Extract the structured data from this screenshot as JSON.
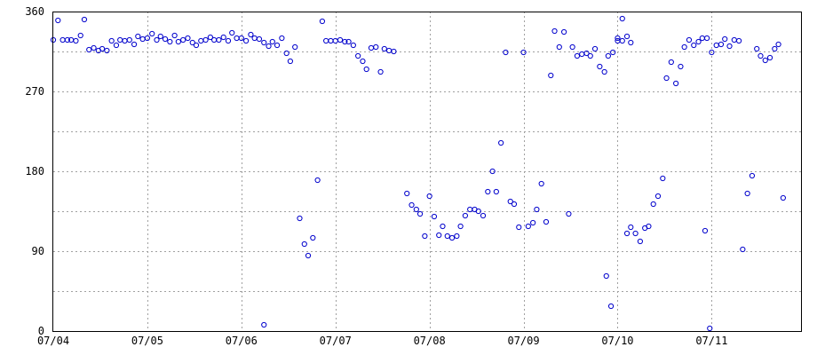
{
  "chart_data": {
    "type": "scatter",
    "title": "",
    "xlabel": "",
    "ylabel": "",
    "ylim": [
      0,
      360
    ],
    "yticks": [
      {
        "value": 0,
        "label": "0"
      },
      {
        "value": 90,
        "label": "90"
      },
      {
        "value": 180,
        "label": "180"
      },
      {
        "value": 270,
        "label": "270"
      },
      {
        "value": 360,
        "label": "360"
      }
    ],
    "y_minor_grid": [
      45,
      135,
      225,
      315
    ],
    "xlim": [
      0,
      7.95
    ],
    "xticks": [
      {
        "value": 0,
        "label": "07/04"
      },
      {
        "value": 1,
        "label": "07/05"
      },
      {
        "value": 2,
        "label": "07/06"
      },
      {
        "value": 3,
        "label": "07/07"
      },
      {
        "value": 4,
        "label": "07/08"
      },
      {
        "value": 5,
        "label": "07/09"
      },
      {
        "value": 6,
        "label": "07/10"
      },
      {
        "value": 7,
        "label": "07/11"
      }
    ],
    "grid": true,
    "marker_color": "#0000cc",
    "marker": "open-circle",
    "points": [
      [
        0.0,
        328
      ],
      [
        0.05,
        350
      ],
      [
        0.1,
        328
      ],
      [
        0.15,
        328
      ],
      [
        0.19,
        328
      ],
      [
        0.24,
        327
      ],
      [
        0.29,
        333
      ],
      [
        0.33,
        351
      ],
      [
        0.38,
        317
      ],
      [
        0.43,
        319
      ],
      [
        0.48,
        316
      ],
      [
        0.52,
        318
      ],
      [
        0.57,
        316
      ],
      [
        0.62,
        327
      ],
      [
        0.67,
        322
      ],
      [
        0.71,
        328
      ],
      [
        0.76,
        327
      ],
      [
        0.81,
        328
      ],
      [
        0.86,
        323
      ],
      [
        0.9,
        332
      ],
      [
        0.95,
        329
      ],
      [
        1.0,
        330
      ],
      [
        1.05,
        335
      ],
      [
        1.1,
        328
      ],
      [
        1.14,
        332
      ],
      [
        1.19,
        329
      ],
      [
        1.24,
        326
      ],
      [
        1.29,
        333
      ],
      [
        1.33,
        326
      ],
      [
        1.38,
        328
      ],
      [
        1.43,
        330
      ],
      [
        1.48,
        325
      ],
      [
        1.52,
        322
      ],
      [
        1.57,
        327
      ],
      [
        1.62,
        328
      ],
      [
        1.67,
        331
      ],
      [
        1.71,
        328
      ],
      [
        1.76,
        328
      ],
      [
        1.81,
        331
      ],
      [
        1.86,
        327
      ],
      [
        1.9,
        336
      ],
      [
        1.95,
        330
      ],
      [
        2.0,
        330
      ],
      [
        2.05,
        327
      ],
      [
        2.1,
        334
      ],
      [
        2.14,
        330
      ],
      [
        2.19,
        329
      ],
      [
        2.24,
        325
      ],
      [
        2.29,
        321
      ],
      [
        2.24,
        7
      ],
      [
        2.33,
        326
      ],
      [
        2.38,
        322
      ],
      [
        2.43,
        330
      ],
      [
        2.48,
        313
      ],
      [
        2.52,
        304
      ],
      [
        2.57,
        320
      ],
      [
        2.62,
        127
      ],
      [
        2.67,
        98
      ],
      [
        2.71,
        85
      ],
      [
        2.76,
        105
      ],
      [
        2.81,
        170
      ],
      [
        2.86,
        349
      ],
      [
        2.9,
        327
      ],
      [
        2.95,
        327
      ],
      [
        3.0,
        327
      ],
      [
        3.05,
        328
      ],
      [
        3.1,
        326
      ],
      [
        3.14,
        326
      ],
      [
        3.19,
        322
      ],
      [
        3.24,
        310
      ],
      [
        3.29,
        304
      ],
      [
        3.33,
        295
      ],
      [
        3.38,
        319
      ],
      [
        3.43,
        320
      ],
      [
        3.48,
        292
      ],
      [
        3.52,
        318
      ],
      [
        3.57,
        316
      ],
      [
        3.62,
        315
      ],
      [
        3.76,
        155
      ],
      [
        3.81,
        142
      ],
      [
        3.86,
        137
      ],
      [
        3.9,
        132
      ],
      [
        3.95,
        107
      ],
      [
        4.0,
        152
      ],
      [
        4.05,
        129
      ],
      [
        4.1,
        108
      ],
      [
        4.14,
        118
      ],
      [
        4.19,
        107
      ],
      [
        4.24,
        105
      ],
      [
        4.29,
        107
      ],
      [
        4.33,
        118
      ],
      [
        4.38,
        130
      ],
      [
        4.43,
        137
      ],
      [
        4.48,
        137
      ],
      [
        4.52,
        135
      ],
      [
        4.57,
        130
      ],
      [
        4.62,
        157
      ],
      [
        4.67,
        180
      ],
      [
        4.71,
        157
      ],
      [
        4.76,
        212
      ],
      [
        4.81,
        314
      ],
      [
        4.86,
        146
      ],
      [
        4.9,
        143
      ],
      [
        4.95,
        117
      ],
      [
        5.0,
        314
      ],
      [
        5.05,
        118
      ],
      [
        5.1,
        122
      ],
      [
        5.14,
        137
      ],
      [
        5.19,
        166
      ],
      [
        5.24,
        123
      ],
      [
        5.29,
        288
      ],
      [
        5.33,
        338
      ],
      [
        5.38,
        320
      ],
      [
        5.43,
        337
      ],
      [
        5.48,
        132
      ],
      [
        5.52,
        320
      ],
      [
        5.57,
        310
      ],
      [
        5.62,
        312
      ],
      [
        5.67,
        313
      ],
      [
        5.71,
        310
      ],
      [
        5.76,
        318
      ],
      [
        5.81,
        298
      ],
      [
        5.86,
        292
      ],
      [
        5.9,
        310
      ],
      [
        5.95,
        314
      ],
      [
        6.0,
        327
      ],
      [
        6.05,
        327
      ],
      [
        6.1,
        332
      ],
      [
        6.14,
        325
      ],
      [
        5.88,
        62
      ],
      [
        5.93,
        28
      ],
      [
        6.0,
        330
      ],
      [
        6.05,
        352
      ],
      [
        6.1,
        110
      ],
      [
        6.14,
        117
      ],
      [
        6.19,
        110
      ],
      [
        6.24,
        101
      ],
      [
        6.29,
        116
      ],
      [
        6.33,
        118
      ],
      [
        6.38,
        143
      ],
      [
        6.43,
        152
      ],
      [
        6.48,
        172
      ],
      [
        6.52,
        285
      ],
      [
        6.57,
        303
      ],
      [
        6.62,
        279
      ],
      [
        6.67,
        298
      ],
      [
        6.71,
        320
      ],
      [
        6.76,
        328
      ],
      [
        6.81,
        322
      ],
      [
        6.86,
        326
      ],
      [
        6.9,
        330
      ],
      [
        6.95,
        330
      ],
      [
        7.0,
        314
      ],
      [
        6.93,
        113
      ],
      [
        6.98,
        3
      ],
      [
        7.05,
        322
      ],
      [
        7.1,
        323
      ],
      [
        7.14,
        329
      ],
      [
        7.19,
        321
      ],
      [
        7.24,
        328
      ],
      [
        7.29,
        327
      ],
      [
        7.33,
        92
      ],
      [
        7.38,
        155
      ],
      [
        7.43,
        175
      ],
      [
        7.48,
        318
      ],
      [
        7.52,
        310
      ],
      [
        7.57,
        305
      ],
      [
        7.62,
        308
      ],
      [
        7.67,
        318
      ],
      [
        7.71,
        323
      ],
      [
        7.76,
        150
      ]
    ]
  }
}
